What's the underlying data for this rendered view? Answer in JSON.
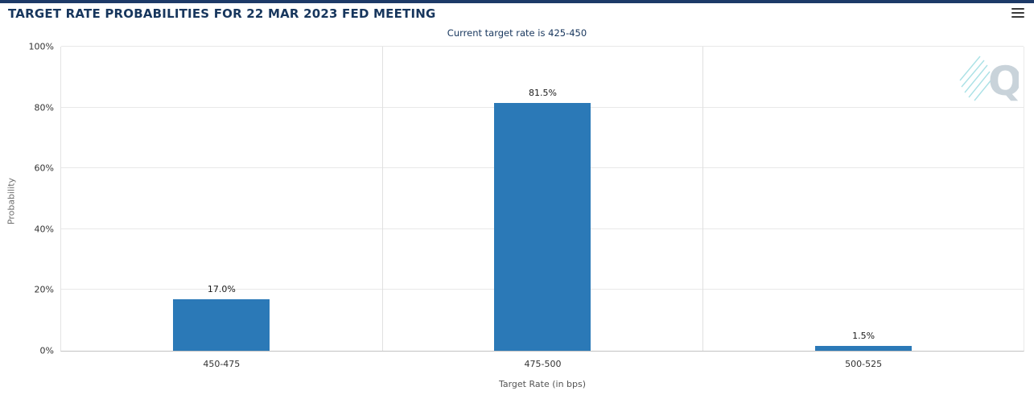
{
  "header": {
    "title": "TARGET RATE PROBABILITIES FOR 22 MAR 2023 FED MEETING"
  },
  "subtitle": "Current target rate is 425-450",
  "branding": {
    "watermark_text": "Q"
  },
  "chart_data": {
    "type": "bar",
    "title": "TARGET RATE PROBABILITIES FOR 22 MAR 2023 FED MEETING",
    "subtitle": "Current target rate is 425-450",
    "categories": [
      "450-475",
      "475-500",
      "500-525"
    ],
    "values": [
      17.0,
      81.5,
      1.5
    ],
    "value_labels": [
      "17.0%",
      "81.5%",
      "1.5%"
    ],
    "xlabel": "Target Rate (in bps)",
    "ylabel": "Probability",
    "ylim": [
      0,
      100
    ],
    "yticks": [
      0,
      20,
      40,
      60,
      80,
      100
    ],
    "ytick_labels": [
      "0%",
      "20%",
      "40%",
      "60%",
      "80%",
      "100%"
    ],
    "grid": true,
    "legend": false,
    "bar_color": "#2b79b7"
  },
  "colors": {
    "accent_navy": "#17365d",
    "top_bar": "#1d3a68",
    "bar": "#2b79b7",
    "gridline": "#e8e8e8",
    "axis_line": "#c3c3c3",
    "watermark_teal": "#8fd8de",
    "watermark_gray": "#c9d3da"
  }
}
